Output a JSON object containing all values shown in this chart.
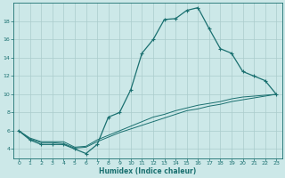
{
  "xlabel": "Humidex (Indice chaleur)",
  "ylabel": "",
  "bg_color": "#cce8e8",
  "grid_color": "#aacccc",
  "line_color": "#1a7070",
  "xlim": [
    -0.5,
    23.5
  ],
  "ylim": [
    3.0,
    20.0
  ],
  "xticks": [
    0,
    1,
    2,
    3,
    4,
    5,
    6,
    7,
    8,
    9,
    10,
    11,
    12,
    13,
    14,
    15,
    16,
    17,
    18,
    19,
    20,
    21,
    22,
    23
  ],
  "yticks": [
    4,
    6,
    8,
    10,
    12,
    14,
    16,
    18
  ],
  "line1_x": [
    0,
    1,
    2,
    3,
    4,
    5,
    6,
    7,
    8,
    9,
    10,
    11,
    12,
    13,
    14,
    15,
    16,
    17,
    18,
    19,
    20,
    21,
    22,
    23
  ],
  "line1_y": [
    6,
    5,
    4.5,
    4.5,
    4.5,
    4,
    3.5,
    4.5,
    7.5,
    8,
    10.5,
    14.5,
    16,
    18.2,
    18.3,
    19.2,
    19.5,
    17.2,
    15,
    14.5,
    12.5,
    12,
    11.5,
    10
  ],
  "line2_x": [
    0,
    1,
    2,
    3,
    4,
    5,
    6,
    7,
    8,
    9,
    10,
    11,
    12,
    13,
    14,
    15,
    16,
    17,
    18,
    19,
    20,
    21,
    22,
    23
  ],
  "line2_y": [
    6,
    5.2,
    4.8,
    4.8,
    4.8,
    4.2,
    4.3,
    5.0,
    5.5,
    6.0,
    6.5,
    7.0,
    7.5,
    7.8,
    8.2,
    8.5,
    8.8,
    9.0,
    9.2,
    9.5,
    9.7,
    9.8,
    9.9,
    10
  ],
  "line3_x": [
    0,
    1,
    2,
    3,
    4,
    5,
    6,
    7,
    8,
    9,
    10,
    11,
    12,
    13,
    14,
    15,
    16,
    17,
    18,
    19,
    20,
    21,
    22,
    23
  ],
  "line3_y": [
    6,
    5.1,
    4.7,
    4.7,
    4.6,
    4.1,
    4.2,
    4.8,
    5.3,
    5.8,
    6.2,
    6.6,
    7.0,
    7.4,
    7.8,
    8.2,
    8.4,
    8.7,
    8.9,
    9.2,
    9.4,
    9.6,
    9.8,
    10
  ]
}
